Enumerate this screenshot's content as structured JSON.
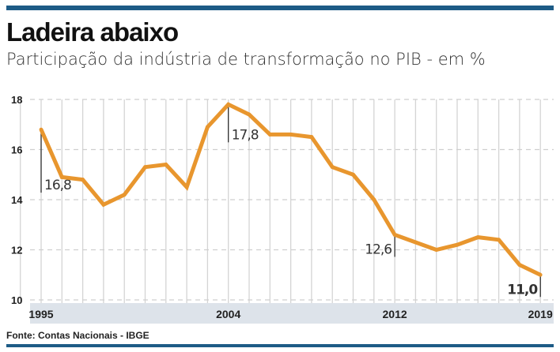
{
  "title": "Ladeira abaixo",
  "subtitle": "Participação da indústria de transformação no PIB - em %",
  "source": "Fonte: Contas Nacionais - IBGE",
  "colors": {
    "line": "#e8962e",
    "header": "#1d5b86",
    "axis_band": "#dde3ea"
  },
  "chart_data": {
    "type": "line",
    "title": "Ladeira abaixo",
    "xlabel": "",
    "ylabel": "%",
    "x": [
      1995,
      1996,
      1997,
      1998,
      1999,
      2000,
      2001,
      2002,
      2003,
      2004,
      2005,
      2006,
      2007,
      2008,
      2009,
      2010,
      2011,
      2012,
      2013,
      2014,
      2015,
      2016,
      2017,
      2018,
      2019
    ],
    "series": [
      {
        "name": "Participação da indústria de transformação no PIB",
        "values": [
          16.8,
          14.9,
          14.8,
          13.8,
          14.2,
          15.3,
          15.4,
          14.5,
          16.9,
          17.8,
          17.4,
          16.6,
          16.6,
          16.5,
          15.3,
          15.0,
          14.0,
          12.6,
          12.3,
          12.0,
          12.2,
          12.5,
          12.4,
          11.4,
          11.0
        ]
      }
    ],
    "ylim": [
      10,
      18
    ],
    "yticks": [
      "10",
      "12",
      "14",
      "16",
      "18"
    ],
    "xtick_labels": [
      {
        "year": 1995,
        "label": "1995"
      },
      {
        "year": 2004,
        "label": "2004"
      },
      {
        "year": 2012,
        "label": "2012"
      },
      {
        "year": 2019,
        "label": "2019"
      }
    ],
    "annotations": [
      {
        "year": 1995,
        "label": "16,8",
        "side": "below-right",
        "bold": false
      },
      {
        "year": 2004,
        "label": "17,8",
        "side": "below-right",
        "bold": false
      },
      {
        "year": 2012,
        "label": "12,6",
        "side": "below-left",
        "bold": false
      },
      {
        "year": 2019,
        "label": "11,0",
        "side": "below-left",
        "bold": true
      }
    ],
    "grid": true
  }
}
